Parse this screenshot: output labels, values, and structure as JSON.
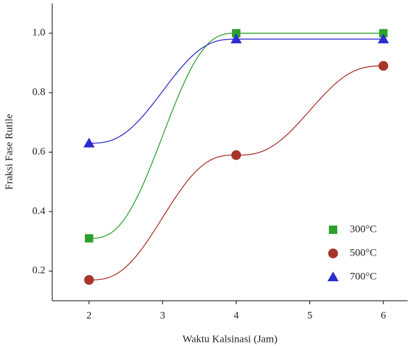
{
  "chart_data": {
    "type": "scatter",
    "x_label": "Waktu Kalsinasi (Jam)",
    "y_label": "Fraksi Fase Rutile",
    "x": [
      2,
      4,
      6
    ],
    "series": [
      {
        "name": "300°C",
        "color": "#2ca02c",
        "marker": "square",
        "values": [
          0.31,
          1.0,
          1.0
        ]
      },
      {
        "name": "500°C",
        "color": "#a8342a",
        "marker": "circle",
        "values": [
          0.17,
          0.59,
          0.89
        ]
      },
      {
        "name": "700°C",
        "color": "#2b2bd0",
        "marker": "triangle",
        "values": [
          0.63,
          0.98,
          0.98
        ]
      }
    ],
    "xlim": [
      1.5,
      6.33
    ],
    "xticks": [
      2,
      3,
      4,
      5,
      6
    ],
    "ylim": [
      0.1,
      1.1
    ],
    "yticks": [
      0.2,
      0.4,
      0.6,
      0.8,
      {
        "value": 1,
        "label": "1.0"
      }
    ],
    "legend": "lower-right",
    "grid": false
  }
}
